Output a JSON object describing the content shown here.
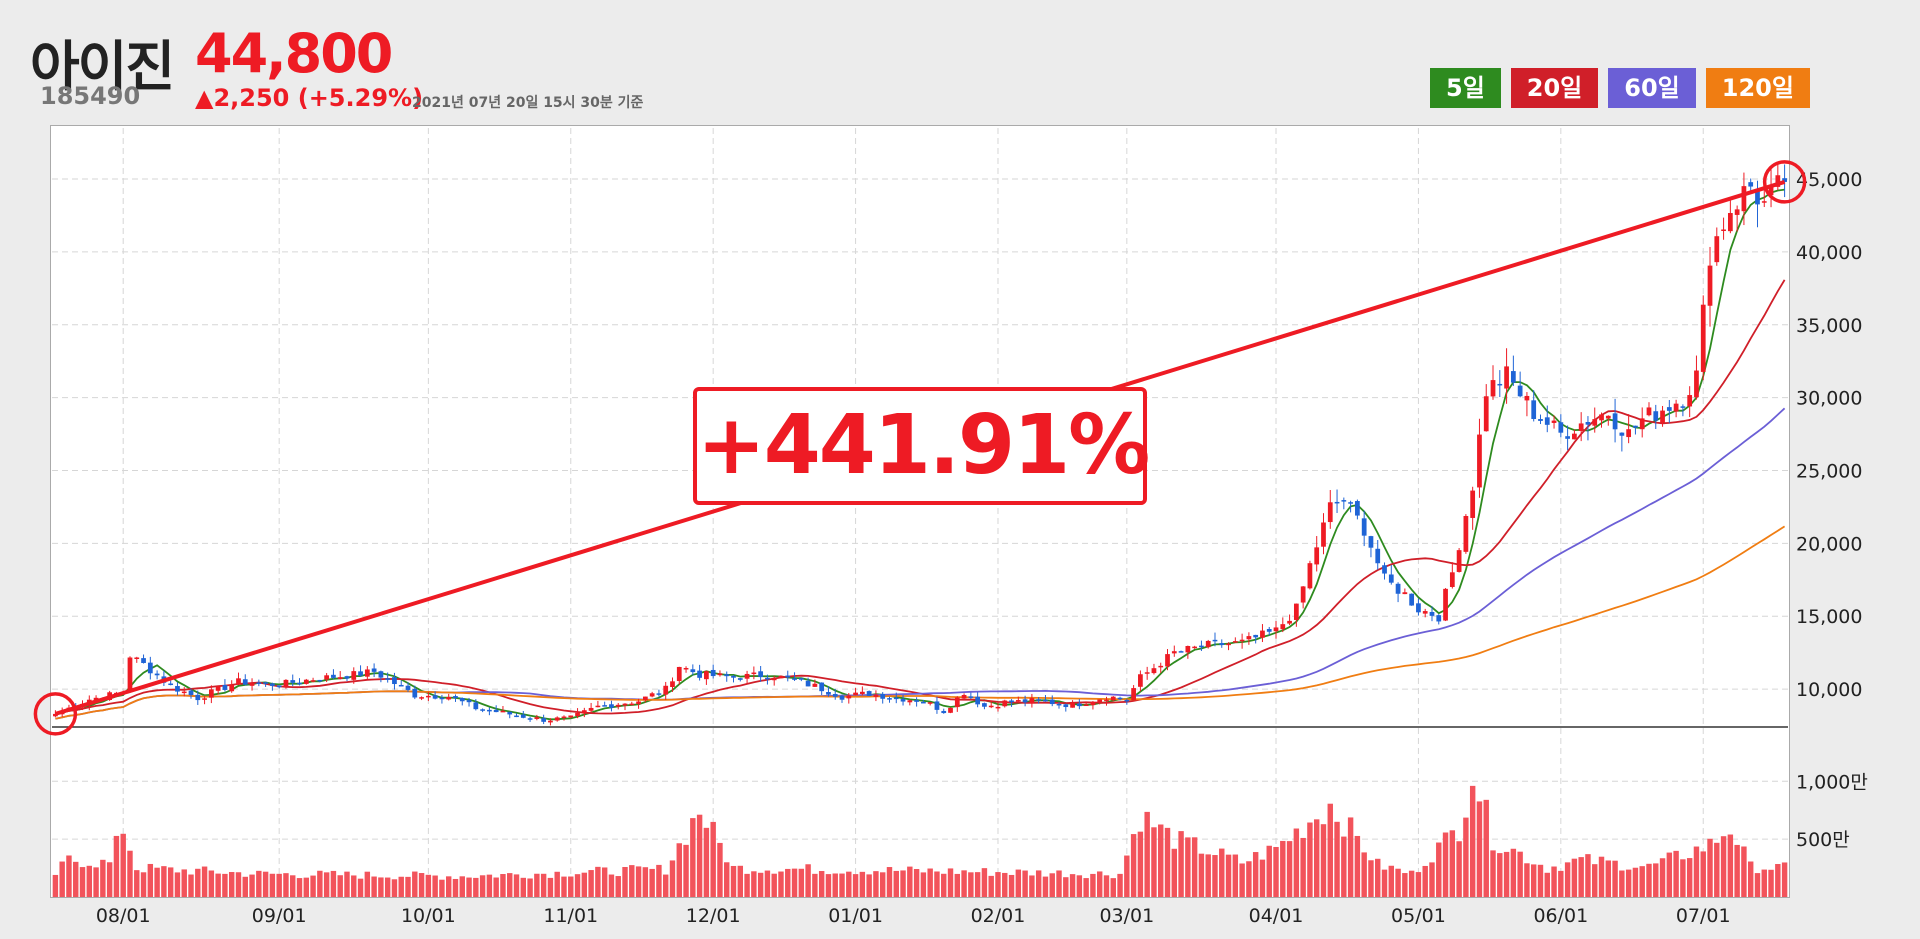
{
  "header": {
    "name": "아이진",
    "price": "44,800",
    "code": "185490",
    "change": "▲2,250 (+5.29%)",
    "as_of": "2021년 07년 20일 15시 30분 기준"
  },
  "legend": [
    {
      "label": "5일",
      "color": "#2e8b1f"
    },
    {
      "label": "20일",
      "color": "#d01f29"
    },
    {
      "label": "60일",
      "color": "#6b5fd6"
    },
    {
      "label": "120일",
      "color": "#f07d12"
    }
  ],
  "callout": "+441.91%",
  "chart_data": {
    "type": "candlestick",
    "y_ticks": [
      "10,000",
      "15,000",
      "20,000",
      "25,000",
      "30,000",
      "35,000",
      "40,000",
      "45,000"
    ],
    "y_tick_values": [
      10000,
      15000,
      20000,
      25000,
      30000,
      35000,
      40000,
      45000
    ],
    "ylim": [
      7400,
      48500
    ],
    "volume_ticks": [
      "500만",
      "1,000만"
    ],
    "volume_tick_values": [
      500,
      1000
    ],
    "volume_max": 1400,
    "x_labels": [
      "08/01",
      "09/01",
      "10/01",
      "11/01",
      "12/01",
      "01/01",
      "02/01",
      "03/01",
      "04/01",
      "05/01",
      "06/01",
      "07/01"
    ],
    "x_label_index": [
      10,
      33,
      55,
      76,
      97,
      118,
      139,
      158,
      180,
      201,
      222,
      243
    ],
    "n": 256,
    "keyframes": [
      [
        0,
        8300
      ],
      [
        5,
        9300
      ],
      [
        10,
        9800
      ],
      [
        11,
        12300
      ],
      [
        13,
        11700
      ],
      [
        17,
        10200
      ],
      [
        21,
        9400
      ],
      [
        27,
        10500
      ],
      [
        33,
        10300
      ],
      [
        38,
        10700
      ],
      [
        44,
        11000
      ],
      [
        47,
        11200
      ],
      [
        53,
        9600
      ],
      [
        58,
        9500
      ],
      [
        62,
        8700
      ],
      [
        68,
        8200
      ],
      [
        72,
        7900
      ],
      [
        76,
        8000
      ],
      [
        80,
        8800
      ],
      [
        86,
        9200
      ],
      [
        90,
        10000
      ],
      [
        92,
        11600
      ],
      [
        95,
        11000
      ],
      [
        100,
        10800
      ],
      [
        105,
        11000
      ],
      [
        108,
        10700
      ],
      [
        112,
        10200
      ],
      [
        116,
        9500
      ],
      [
        120,
        9700
      ],
      [
        124,
        9400
      ],
      [
        128,
        9200
      ],
      [
        131,
        8500
      ],
      [
        134,
        9800
      ],
      [
        137,
        8800
      ],
      [
        140,
        9100
      ],
      [
        145,
        9200
      ],
      [
        150,
        8900
      ],
      [
        155,
        9500
      ],
      [
        158,
        9300
      ],
      [
        160,
        10800
      ],
      [
        165,
        12500
      ],
      [
        170,
        13000
      ],
      [
        175,
        13200
      ],
      [
        180,
        14000
      ],
      [
        183,
        15500
      ],
      [
        185,
        18500
      ],
      [
        188,
        22500
      ],
      [
        190,
        23000
      ],
      [
        193,
        21000
      ],
      [
        196,
        17500
      ],
      [
        199,
        16500
      ],
      [
        201,
        15500
      ],
      [
        204,
        15000
      ],
      [
        206,
        18000
      ],
      [
        209,
        24000
      ],
      [
        211,
        30500
      ],
      [
        214,
        31500
      ],
      [
        218,
        29000
      ],
      [
        222,
        27500
      ],
      [
        226,
        28500
      ],
      [
        229,
        29000
      ],
      [
        232,
        27500
      ],
      [
        234,
        28500
      ],
      [
        236,
        29000
      ],
      [
        240,
        30000
      ],
      [
        242,
        31500
      ],
      [
        244,
        40000
      ],
      [
        247,
        43000
      ],
      [
        250,
        44500
      ],
      [
        252,
        43200
      ],
      [
        255,
        44800
      ]
    ],
    "volume_keyframes": [
      [
        0,
        200
      ],
      [
        2,
        320
      ],
      [
        8,
        290
      ],
      [
        10,
        600
      ],
      [
        12,
        250
      ],
      [
        30,
        200
      ],
      [
        60,
        180
      ],
      [
        90,
        240
      ],
      [
        95,
        750
      ],
      [
        100,
        250
      ],
      [
        157,
        200
      ],
      [
        160,
        700
      ],
      [
        165,
        500
      ],
      [
        175,
        300
      ],
      [
        180,
        420
      ],
      [
        188,
        800
      ],
      [
        195,
        280
      ],
      [
        200,
        200
      ],
      [
        207,
        600
      ],
      [
        209,
        1100
      ],
      [
        212,
        500
      ],
      [
        220,
        250
      ],
      [
        225,
        320
      ],
      [
        235,
        260
      ],
      [
        244,
        450
      ],
      [
        247,
        600
      ],
      [
        250,
        260
      ],
      [
        255,
        250
      ]
    ],
    "series": [
      {
        "name": "5일",
        "color": "#2e8b1f"
      },
      {
        "name": "20일",
        "color": "#d01f29"
      },
      {
        "name": "60일",
        "color": "#6b5fd6"
      },
      {
        "name": "120일",
        "color": "#f07d12"
      }
    ],
    "up_color": "#ee1b24",
    "down_color": "#1f64d6",
    "trend": {
      "from_index": 0,
      "from_value": 8300,
      "to_index": 255,
      "to_value": 44800,
      "color": "#ee1b24"
    }
  }
}
